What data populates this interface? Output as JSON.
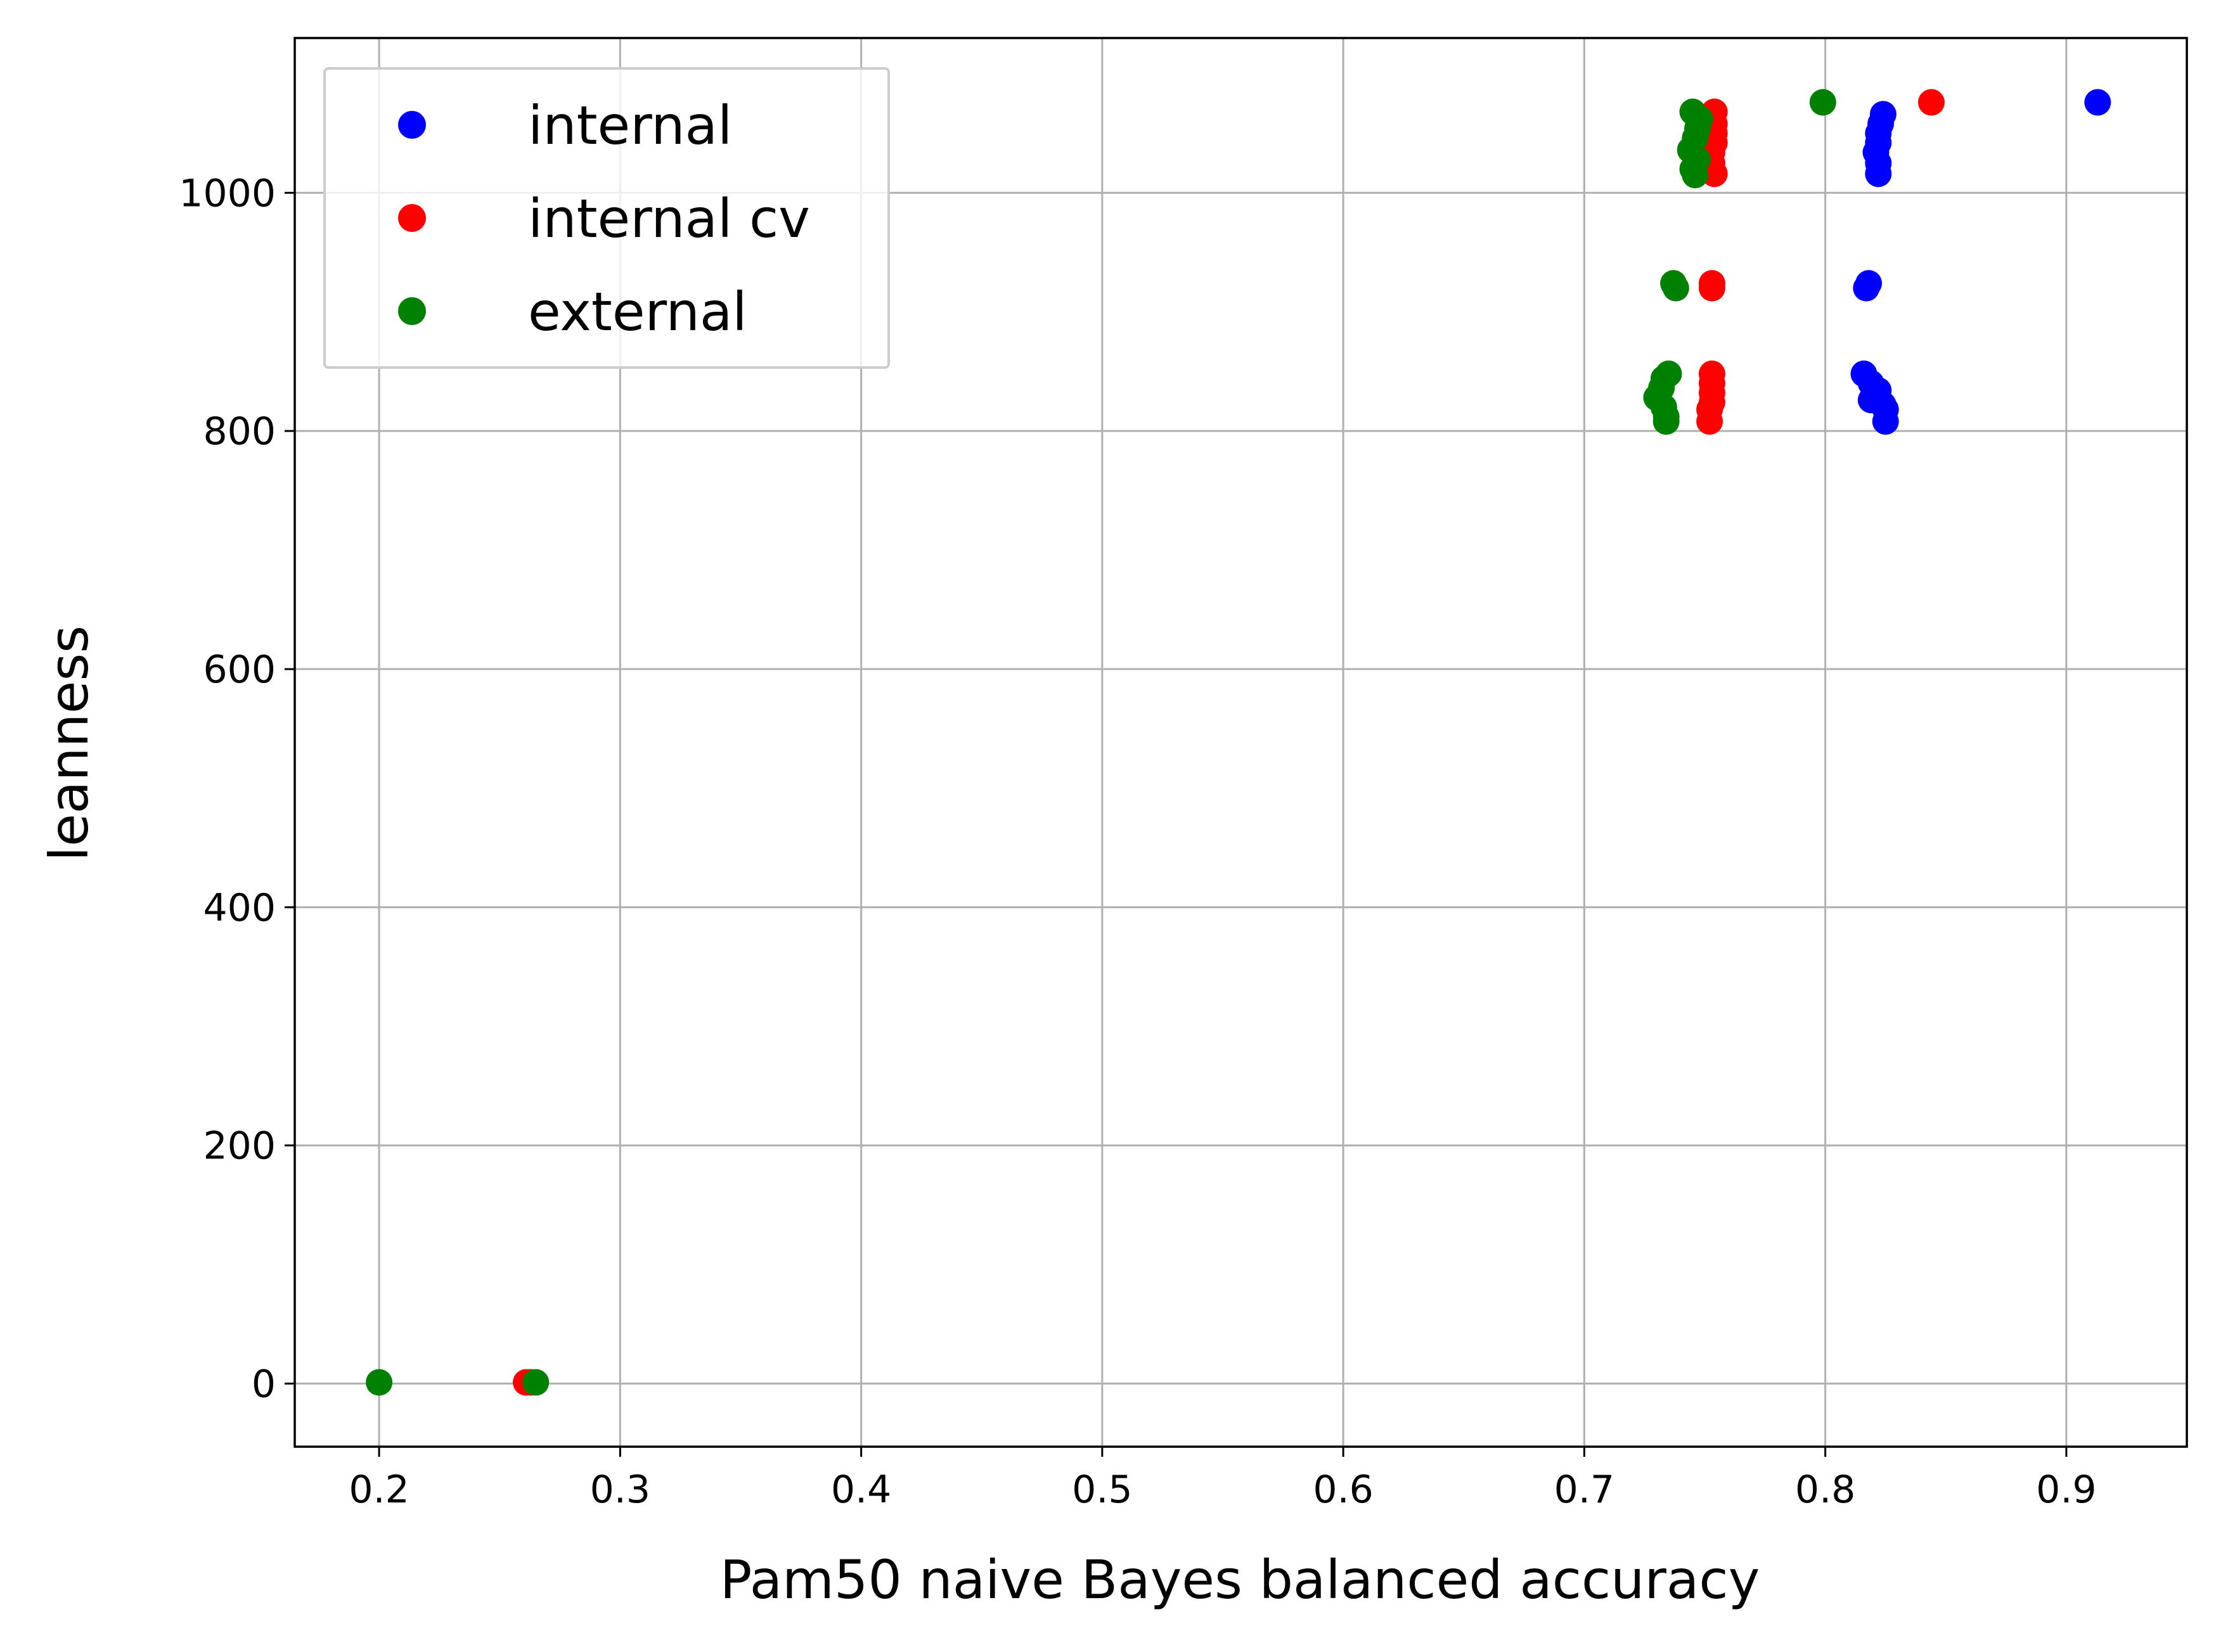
{
  "chart_data": {
    "type": "scatter",
    "title": "",
    "xlabel": "Pam50 naive Bayes balanced accuracy",
    "ylabel": "leanness",
    "xlim": [
      0.165,
      0.95
    ],
    "ylim": [
      -53,
      1130
    ],
    "xticks": [
      0.2,
      0.3,
      0.4,
      0.5,
      0.6,
      0.7,
      0.8,
      0.9
    ],
    "xtick_labels": [
      "0.2",
      "0.3",
      "0.4",
      "0.5",
      "0.6",
      "0.7",
      "0.8",
      "0.9"
    ],
    "yticks": [
      0,
      200,
      400,
      600,
      800,
      1000
    ],
    "ytick_labels": [
      "0",
      "200",
      "400",
      "600",
      "800",
      "1000"
    ],
    "grid": true,
    "legend_position": "top-left",
    "series": [
      {
        "name": "internal",
        "color": "#0000ff",
        "points": [
          [
            0.913,
            1076
          ],
          [
            0.824,
            1066
          ],
          [
            0.823,
            1058
          ],
          [
            0.822,
            1050
          ],
          [
            0.822,
            1042
          ],
          [
            0.821,
            1034
          ],
          [
            0.822,
            1025
          ],
          [
            0.822,
            1016
          ],
          [
            0.818,
            924
          ],
          [
            0.817,
            920
          ],
          [
            0.816,
            848
          ],
          [
            0.819,
            840
          ],
          [
            0.822,
            834
          ],
          [
            0.819,
            826
          ],
          [
            0.824,
            822
          ],
          [
            0.825,
            818
          ],
          [
            0.825,
            808
          ]
        ]
      },
      {
        "name": "internal cv",
        "color": "#ff0000",
        "points": [
          [
            0.844,
            1076
          ],
          [
            0.754,
            1068
          ],
          [
            0.754,
            1058
          ],
          [
            0.754,
            1050
          ],
          [
            0.754,
            1042
          ],
          [
            0.753,
            1034
          ],
          [
            0.753,
            1025
          ],
          [
            0.754,
            1016
          ],
          [
            0.753,
            924
          ],
          [
            0.753,
            920
          ],
          [
            0.753,
            848
          ],
          [
            0.753,
            840
          ],
          [
            0.753,
            832
          ],
          [
            0.753,
            824
          ],
          [
            0.752,
            818
          ],
          [
            0.752,
            808
          ],
          [
            0.261,
            1
          ],
          [
            0.263,
            1
          ]
        ]
      },
      {
        "name": "external",
        "color": "#008000",
        "points": [
          [
            0.799,
            1076
          ],
          [
            0.745,
            1068
          ],
          [
            0.748,
            1062
          ],
          [
            0.747,
            1054
          ],
          [
            0.746,
            1046
          ],
          [
            0.744,
            1036
          ],
          [
            0.747,
            1028
          ],
          [
            0.745,
            1020
          ],
          [
            0.746,
            1015
          ],
          [
            0.737,
            924
          ],
          [
            0.738,
            920
          ],
          [
            0.735,
            848
          ],
          [
            0.733,
            844
          ],
          [
            0.732,
            836
          ],
          [
            0.73,
            828
          ],
          [
            0.733,
            820
          ],
          [
            0.734,
            812
          ],
          [
            0.734,
            808
          ],
          [
            0.2,
            1
          ],
          [
            0.265,
            1
          ]
        ]
      }
    ]
  }
}
